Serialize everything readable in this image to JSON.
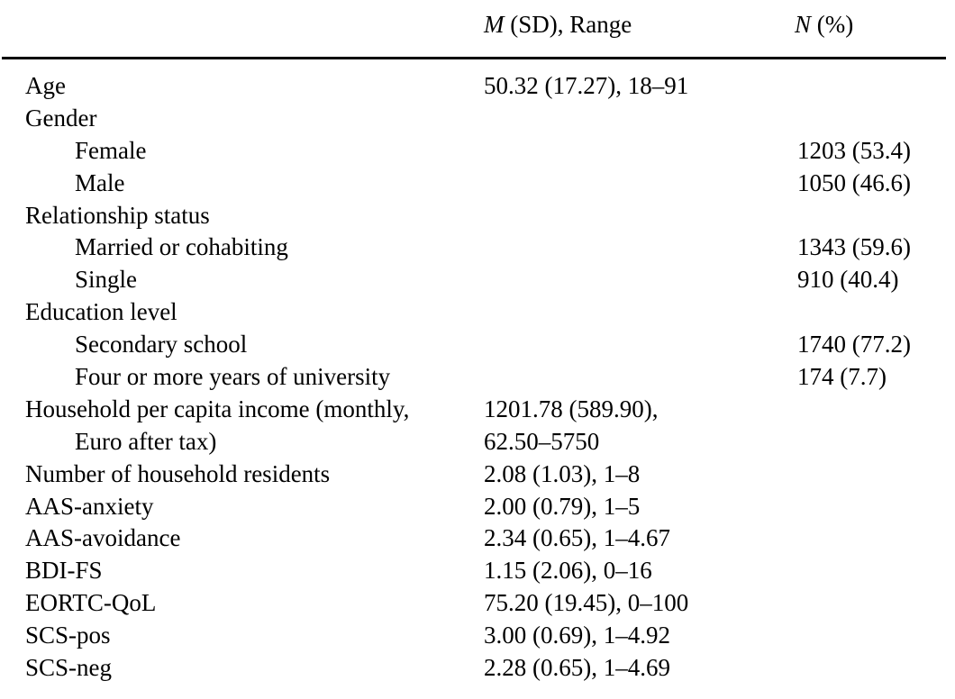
{
  "page": {
    "background_color": "#ffffff",
    "text_color": "#000000"
  },
  "table": {
    "header": {
      "stat": {
        "symbol": "M",
        "rest": " (SD), Range"
      },
      "count": {
        "symbol": "N",
        "rest": " (%)"
      }
    },
    "rows": [
      {
        "label": "Age",
        "indent": 0,
        "stat": "50.32 (17.27), 18–91",
        "count": ""
      },
      {
        "label": "Gender",
        "indent": 0,
        "stat": "",
        "count": ""
      },
      {
        "label": "Female",
        "indent": 1,
        "stat": "",
        "count": "1203 (53.4)"
      },
      {
        "label": "Male",
        "indent": 1,
        "stat": "",
        "count": "1050 (46.6)"
      },
      {
        "label": "Relationship status",
        "indent": 0,
        "stat": "",
        "count": ""
      },
      {
        "label": "Married or cohabiting",
        "indent": 1,
        "stat": "",
        "count": "1343 (59.6)"
      },
      {
        "label": "Single",
        "indent": 1,
        "stat": "",
        "count": "910 (40.4)"
      },
      {
        "label": "Education level",
        "indent": 0,
        "stat": "",
        "count": ""
      },
      {
        "label": "Secondary school",
        "indent": 1,
        "stat": "",
        "count": "1740 (77.2)"
      },
      {
        "label": "Four or more years of university",
        "indent": 1,
        "stat": "",
        "count": "174 (7.7)"
      },
      {
        "label": "Household per capita income (monthly,",
        "indent": 0,
        "stat": "1201.78 (589.90),",
        "count": ""
      },
      {
        "label": "Euro after tax)",
        "indent": 1,
        "stat": "62.50–5750",
        "count": ""
      },
      {
        "label": "Number of household residents",
        "indent": 0,
        "stat": "2.08 (1.03), 1–8",
        "count": ""
      },
      {
        "label": "AAS-anxiety",
        "indent": 0,
        "stat": "2.00 (0.79), 1–5",
        "count": ""
      },
      {
        "label": "AAS-avoidance",
        "indent": 0,
        "stat": "2.34 (0.65), 1–4.67",
        "count": ""
      },
      {
        "label": "BDI-FS",
        "indent": 0,
        "stat": "1.15 (2.06), 0–16",
        "count": ""
      },
      {
        "label": "EORTC-QoL",
        "indent": 0,
        "stat": "75.20 (19.45), 0–100",
        "count": ""
      },
      {
        "label": "SCS-pos",
        "indent": 0,
        "stat": "3.00 (0.69), 1–4.92",
        "count": ""
      },
      {
        "label": "SCS-neg",
        "indent": 0,
        "stat": "2.28 (0.65), 1–4.69",
        "count": ""
      }
    ]
  }
}
